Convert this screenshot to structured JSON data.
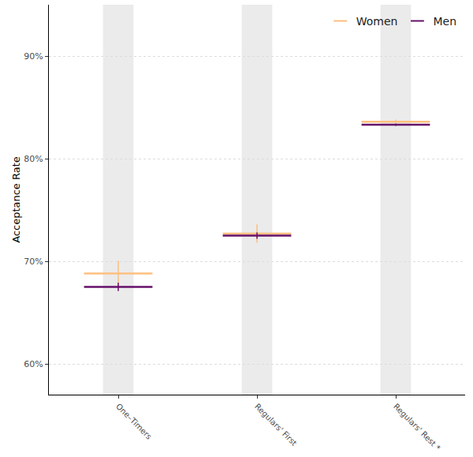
{
  "chart_data": {
    "type": "errorbar",
    "y_label": "Acceptance Rate",
    "categories": [
      "One–Timers",
      "Regulars' First",
      "Regulars' Rest *"
    ],
    "series": [
      {
        "name": "Women",
        "color": "#fdbf7f",
        "values": [
          68.8,
          72.7,
          83.6
        ],
        "errors": [
          1.25,
          0.9,
          0.2
        ]
      },
      {
        "name": "Men",
        "color": "#66106a",
        "values": [
          67.5,
          72.5,
          83.3
        ],
        "errors": [
          0.4,
          0.3,
          0.1
        ]
      }
    ],
    "ylim": [
      57,
      95
    ],
    "yticks": [
      {
        "value": 60,
        "label": "60%"
      },
      {
        "value": 70,
        "label": "70%"
      },
      {
        "value": 80,
        "label": "80%"
      },
      {
        "value": 90,
        "label": "90%"
      }
    ],
    "grid": true,
    "legend": "top right",
    "marker": "line-ew"
  }
}
